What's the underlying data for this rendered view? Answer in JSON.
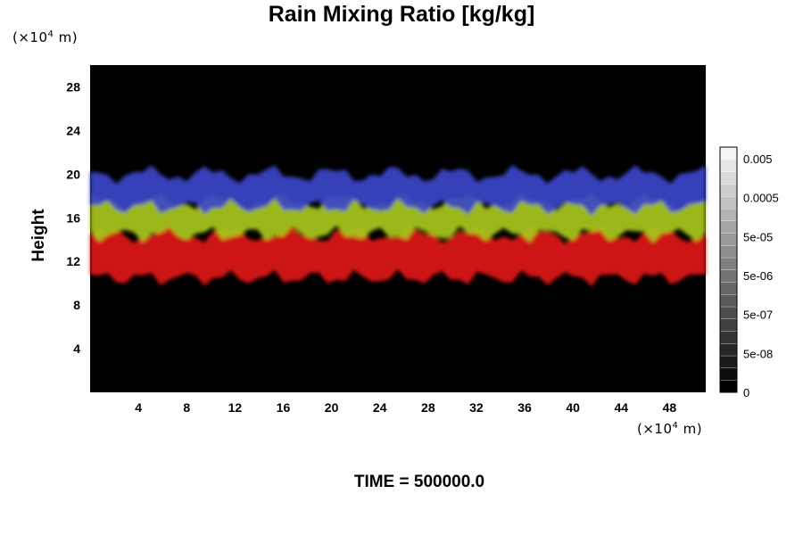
{
  "title": "Rain Mixing Ratio [kg/kg]",
  "units": {
    "y": {
      "prefix": "(×10",
      "exp": "4",
      "suffix": " m)"
    },
    "x": {
      "prefix": "(×10",
      "exp": "4",
      "suffix": " m)"
    }
  },
  "ylabel": "Height",
  "time_label": "TIME = 500000.0",
  "chart_data": {
    "type": "heatmap",
    "title": "Rain Mixing Ratio [kg/kg]",
    "xlabel": "",
    "ylabel": "Height",
    "xlim": [
      0,
      51
    ],
    "ylim": [
      0,
      30
    ],
    "x_ticks": [
      4,
      8,
      12,
      16,
      20,
      24,
      28,
      32,
      36,
      40,
      44,
      48
    ],
    "y_ticks": [
      4,
      8,
      12,
      16,
      20,
      24,
      28
    ],
    "background_color": "#000000",
    "bands": [
      {
        "color": "#3a44c8",
        "y_range": [
          17,
          20
        ]
      },
      {
        "color": "#a8c81e",
        "y_range": [
          14.5,
          17.5
        ]
      },
      {
        "color": "#e01818",
        "y_range": [
          10.5,
          14.5
        ]
      }
    ],
    "colorbar": {
      "labels": [
        "0.005",
        "0.0005",
        "5e-05",
        "5e-06",
        "5e-07",
        "5e-08",
        "0"
      ],
      "levels": 20,
      "color_min": "#000000",
      "color_max": "#f4f4f4"
    }
  }
}
